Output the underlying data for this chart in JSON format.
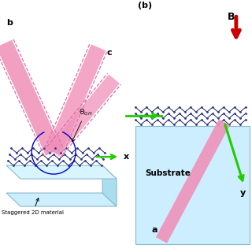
{
  "bg_color": "#ffffff",
  "substrate_left_color": "#cceeff",
  "substrate_right_color": "#cceeff",
  "substrate_side_color": "#aaddee",
  "beam_pink": "#f090b8",
  "beam_pink_edge": "#e060a0",
  "beam_dashed_color": "#dd70aa",
  "arrow_green": "#22cc00",
  "arrow_red": "#cc0000",
  "lattice_node_color": "#2233aa",
  "lattice_line_color": "#222244",
  "green_line_color": "#22cc00",
  "label_b": "b",
  "label_c": "c",
  "label_x": "x",
  "label_b_panel": "(b)",
  "label_B": "B",
  "label_substrate": "Substrate",
  "label_y": "y",
  "label_a": "a",
  "label_staggered": "Staggered 2D material",
  "theta_label": "$\\Theta_{GH}$",
  "arc_color": "#0000cc"
}
